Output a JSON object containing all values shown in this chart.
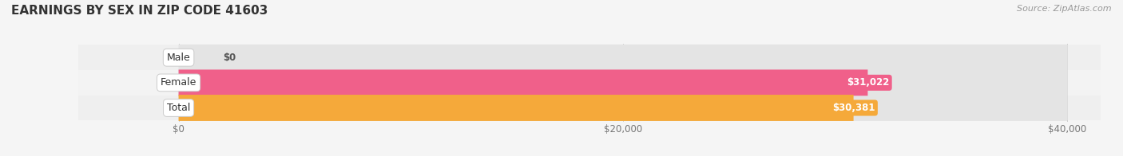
{
  "title": "EARNINGS BY SEX IN ZIP CODE 41603",
  "source": "Source: ZipAtlas.com",
  "categories": [
    "Male",
    "Female",
    "Total"
  ],
  "values": [
    0,
    31022,
    30381
  ],
  "bar_colors": [
    "#a8c8f0",
    "#f0608a",
    "#f5a93a"
  ],
  "value_labels": [
    "$0",
    "$31,022",
    "$30,381"
  ],
  "xlim_data": [
    0,
    40000
  ],
  "xticks": [
    0,
    20000,
    40000
  ],
  "xtick_labels": [
    "$0",
    "$20,000",
    "$40,000"
  ],
  "background_color": "#f5f5f5",
  "bar_bg_color": "#e4e4e4",
  "title_fontsize": 11,
  "source_fontsize": 8,
  "label_fontsize": 9,
  "value_fontsize": 8.5,
  "bar_height": 0.52
}
